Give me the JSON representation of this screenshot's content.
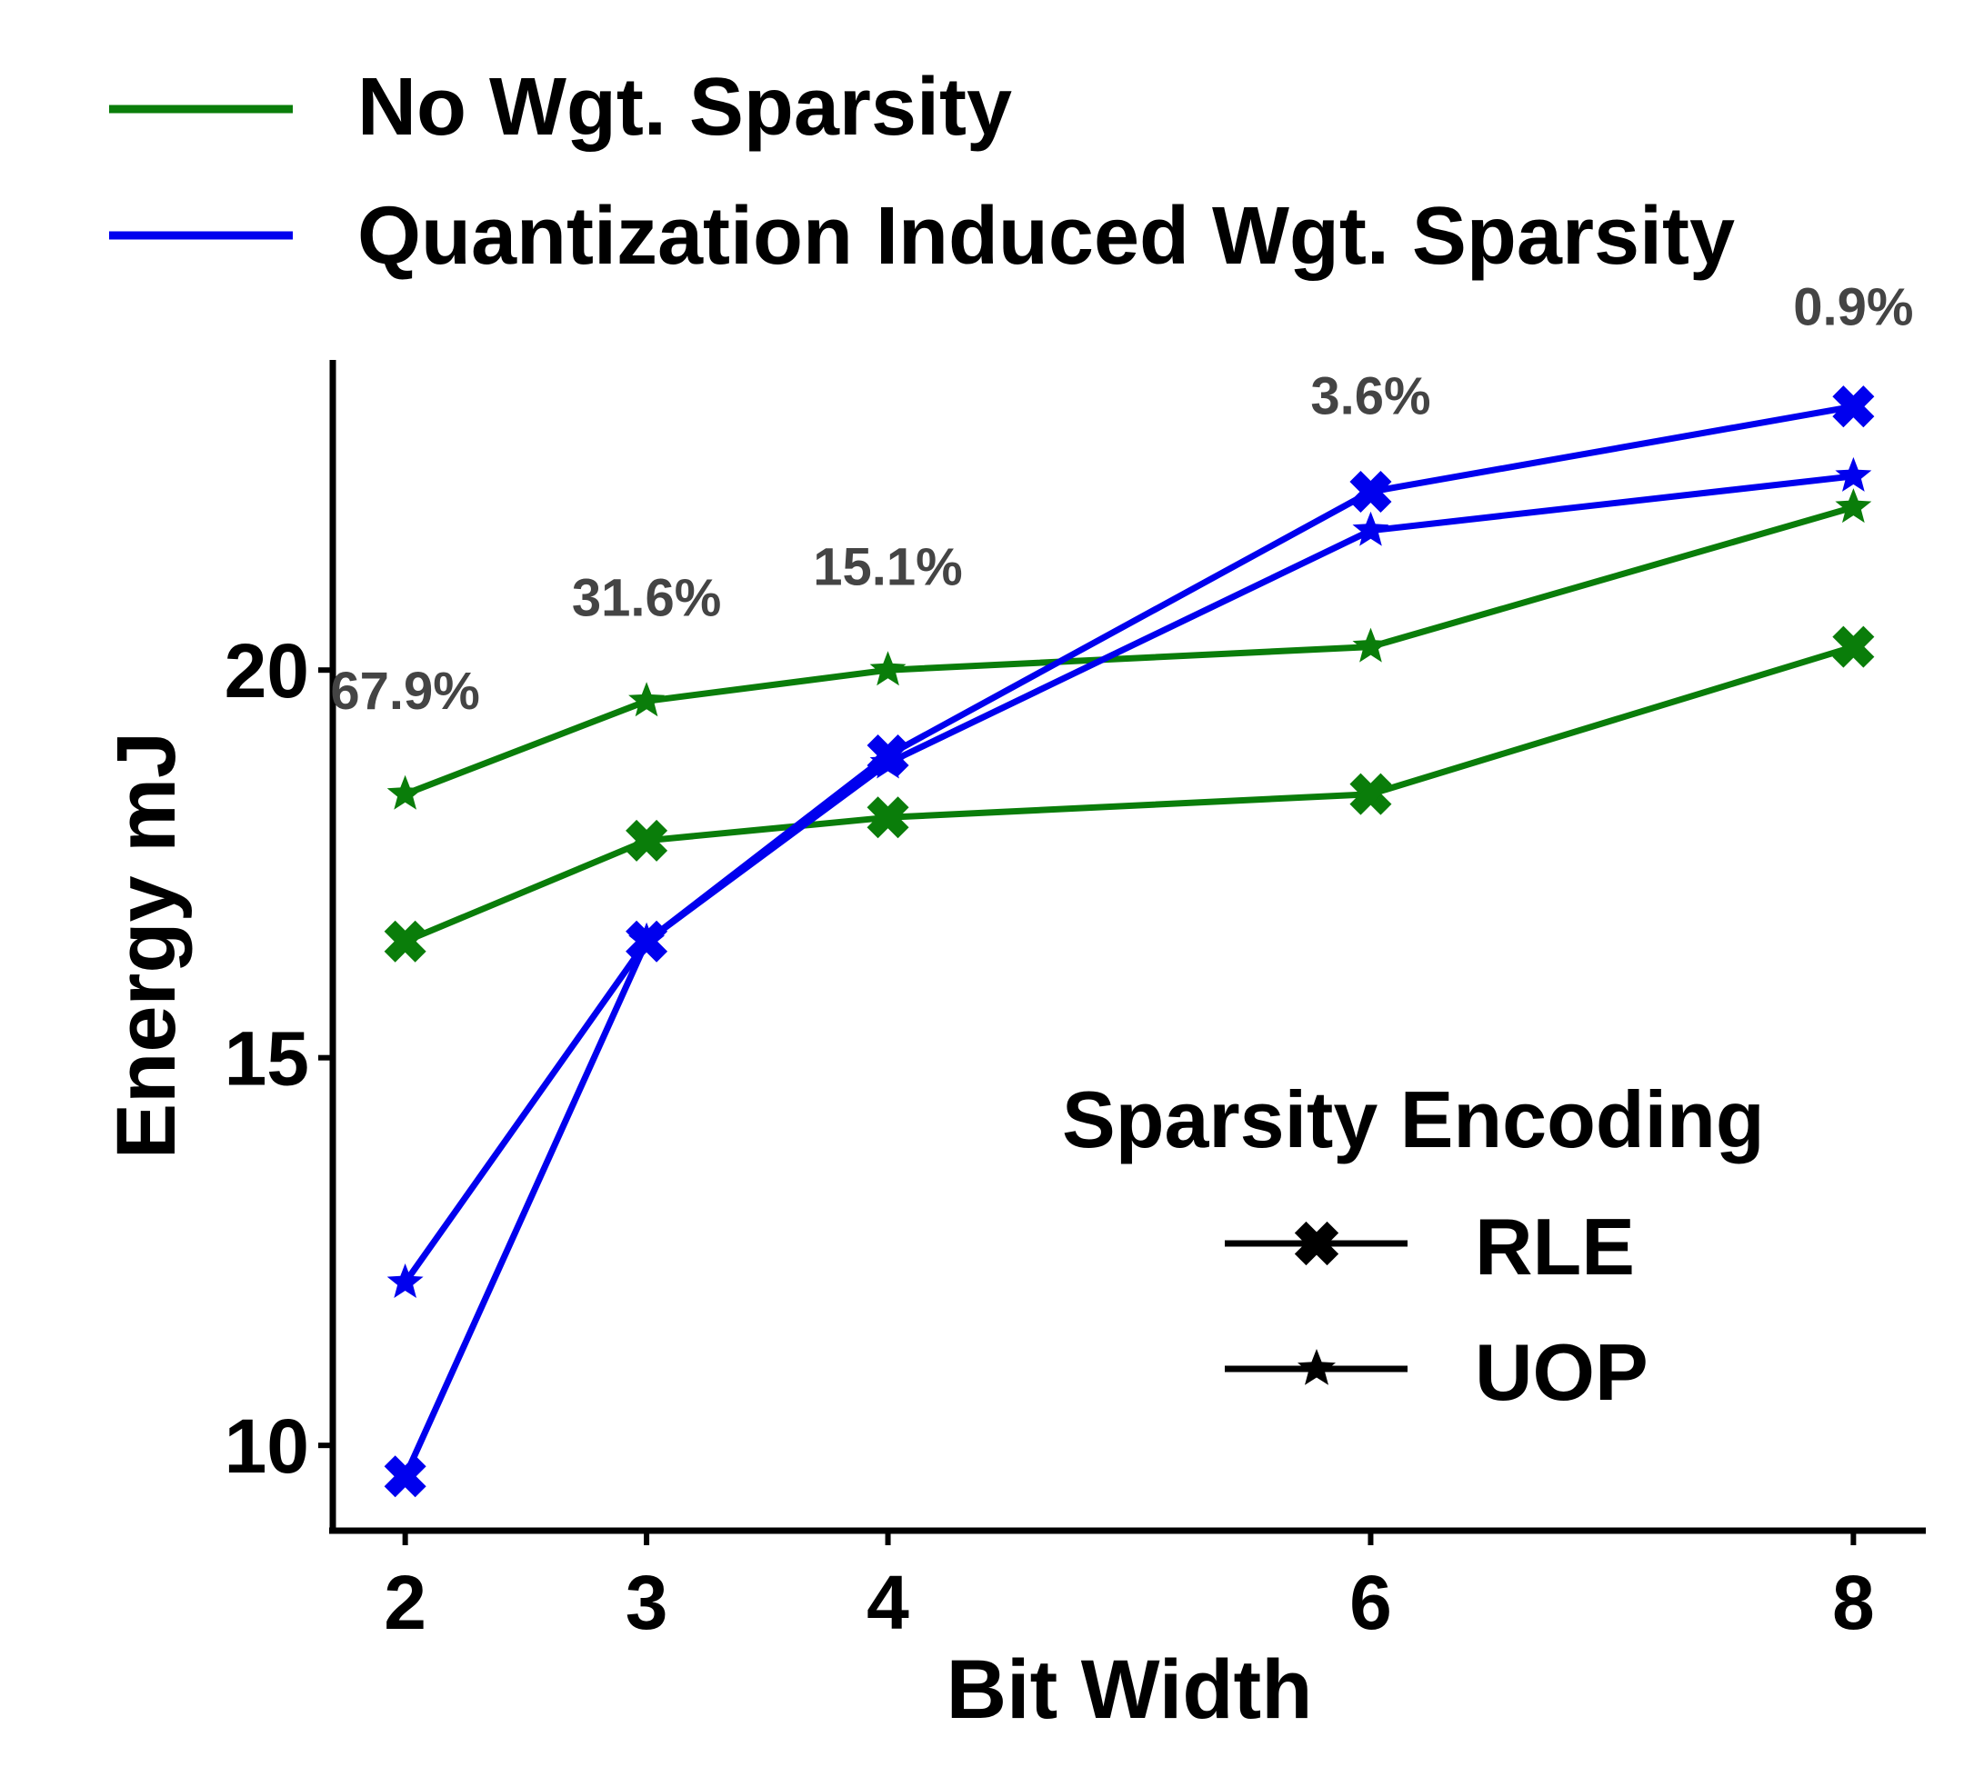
{
  "chart_data": {
    "type": "line",
    "title": "",
    "xlabel": "Bit Width",
    "ylabel": "Energy mJ",
    "x": [
      2,
      3,
      4,
      6,
      8
    ],
    "xticks": [
      "2",
      "3",
      "4",
      "6",
      "8"
    ],
    "xlim": [
      1.7,
      8.3
    ],
    "ylim": [
      8.9,
      24.0
    ],
    "yticks": [
      10,
      15,
      20
    ],
    "ytick_labels": [
      "10",
      "15",
      "20"
    ],
    "grid": false,
    "series": [
      {
        "name": "No Wgt. Sparsity — RLE",
        "color": "#0a7d0a",
        "marker": "cross",
        "values": [
          16.5,
          17.8,
          18.1,
          18.4,
          20.3
        ]
      },
      {
        "name": "No Wgt. Sparsity — UOP",
        "color": "#0a7d0a",
        "marker": "star",
        "values": [
          18.4,
          19.6,
          20.0,
          20.3,
          22.1
        ]
      },
      {
        "name": "Quantization Induced Wgt. Sparsity — RLE",
        "color": "#0000ee",
        "marker": "cross",
        "values": [
          9.6,
          16.5,
          18.9,
          22.3,
          23.4
        ]
      },
      {
        "name": "Quantization Induced Wgt. Sparsity — UOP",
        "color": "#0000ee",
        "marker": "star",
        "values": [
          12.1,
          16.5,
          18.8,
          21.8,
          22.5
        ]
      }
    ],
    "annotations": [
      {
        "x": 2,
        "y": 19.5,
        "text": "67.9%"
      },
      {
        "x": 3,
        "y": 20.7,
        "text": "31.6%"
      },
      {
        "x": 4,
        "y": 21.1,
        "text": "15.1%"
      },
      {
        "x": 6,
        "y": 23.3,
        "text": "3.6%"
      },
      {
        "x": 8,
        "y": 24.45,
        "text": "0.9%"
      }
    ],
    "annotation_color": "#444444",
    "color_legend": {
      "position": "top",
      "entries": [
        {
          "label": "No Wgt. Sparsity",
          "color": "#0a7d0a"
        },
        {
          "label": "Quantization Induced Wgt. Sparsity",
          "color": "#0000ee"
        }
      ]
    },
    "marker_legend": {
      "title": "Sparsity Encoding",
      "position": "bottom-right",
      "entries": [
        {
          "label": "RLE",
          "marker": "cross"
        },
        {
          "label": "UOP",
          "marker": "star"
        }
      ]
    }
  }
}
